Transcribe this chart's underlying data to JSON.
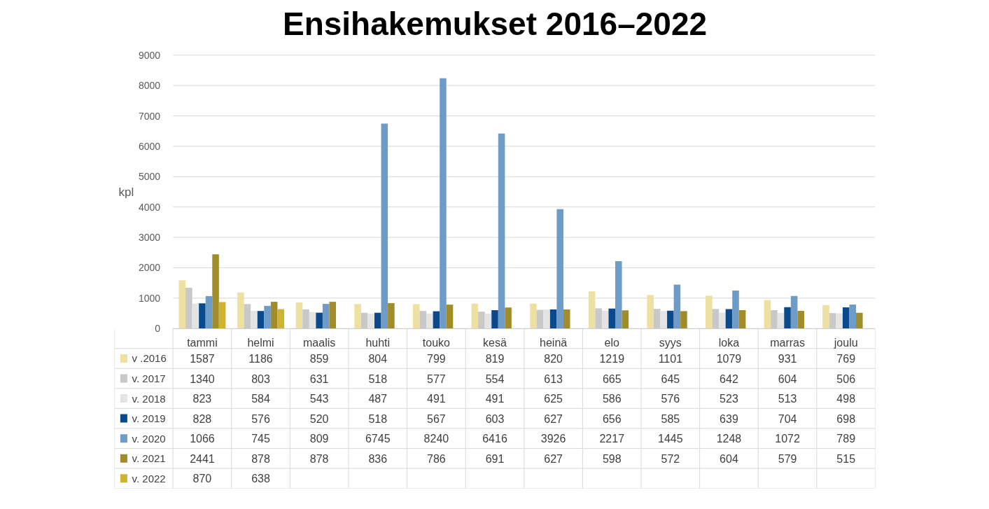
{
  "chart_data": {
    "type": "bar",
    "title": "Ensihakemukset 2016–2022",
    "ylabel": "kpl",
    "categories": [
      "tammi",
      "helmi",
      "maalis",
      "huhti",
      "touko",
      "kesä",
      "heinä",
      "elo",
      "syys",
      "loka",
      "marras",
      "joulu"
    ],
    "series": [
      {
        "name": "v .2016",
        "color": "#ede0a0",
        "values": [
          1587,
          1186,
          859,
          804,
          799,
          819,
          820,
          1219,
          1101,
          1079,
          931,
          769
        ]
      },
      {
        "name": "v. 2017",
        "color": "#c8c8c8",
        "values": [
          1340,
          803,
          631,
          518,
          577,
          554,
          613,
          665,
          645,
          642,
          604,
          506
        ]
      },
      {
        "name": "v. 2018",
        "color": "#e4e4e4",
        "values": [
          823,
          584,
          543,
          487,
          491,
          491,
          625,
          586,
          576,
          523,
          513,
          498
        ]
      },
      {
        "name": "v. 2019",
        "color": "#0a4a8c",
        "values": [
          828,
          576,
          520,
          518,
          567,
          603,
          627,
          656,
          585,
          639,
          704,
          698
        ]
      },
      {
        "name": "v. 2020",
        "color": "#6f9bc7",
        "values": [
          1066,
          745,
          809,
          6745,
          8240,
          6416,
          3926,
          2217,
          1445,
          1248,
          1072,
          789
        ]
      },
      {
        "name": "v. 2021",
        "color": "#a08c28",
        "values": [
          2441,
          878,
          878,
          836,
          786,
          691,
          627,
          598,
          572,
          604,
          579,
          515
        ]
      },
      {
        "name": "v. 2022",
        "color": "#d0b430",
        "values": [
          870,
          638,
          null,
          null,
          null,
          null,
          null,
          null,
          null,
          null,
          null,
          null
        ]
      }
    ],
    "ylim": [
      0,
      9000
    ],
    "yticks": [
      0,
      1000,
      2000,
      3000,
      4000,
      5000,
      6000,
      7000,
      8000,
      9000
    ],
    "grid": "y",
    "legend": "bottom",
    "data_labels": true
  }
}
